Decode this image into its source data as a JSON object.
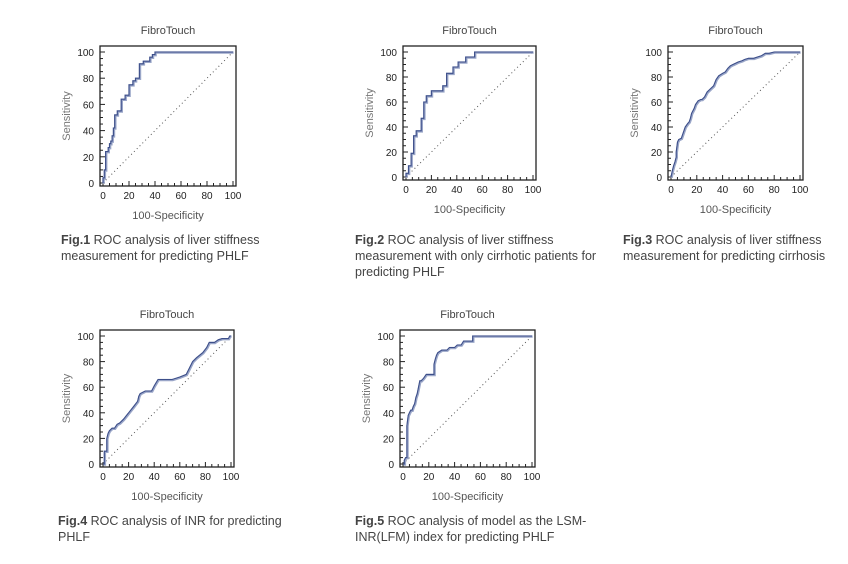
{
  "colors": {
    "curve": "#3d4f8a",
    "curve_shadow": "#9aa6c8",
    "axis": "#222222",
    "diagonal": "#555555",
    "tick_label": "#222222",
    "axis_title": "#777777"
  },
  "chart_data": [
    {
      "id": "fig1",
      "type": "line",
      "title": "FibroTouch",
      "xlabel": "100-Specificity",
      "ylabel": "Sensitivity",
      "xlim": [
        0,
        100
      ],
      "ylim": [
        0,
        100
      ],
      "xticks": [
        "0",
        "20",
        "40",
        "60",
        "80",
        "100"
      ],
      "yticks": [
        "0",
        "20",
        "40",
        "60",
        "80",
        "100"
      ],
      "grid": false,
      "reference_line": "diagonal",
      "caption_label": "Fig.1",
      "caption_text": " ROC analysis of liver stiffness measurement for predicting PHLF",
      "series": [
        {
          "name": "ROC",
          "x": [
            0,
            0,
            1,
            1,
            2,
            2,
            4,
            4,
            5,
            5,
            6,
            6,
            7,
            7,
            8,
            8,
            9,
            9,
            11,
            11,
            14,
            14,
            17,
            17,
            20,
            20,
            23,
            23,
            25,
            25,
            28,
            28,
            31,
            31,
            36,
            36,
            38,
            38,
            40,
            40,
            100
          ],
          "y": [
            0,
            4,
            4,
            10,
            10,
            24,
            24,
            27,
            27,
            30,
            30,
            32,
            32,
            36,
            36,
            42,
            42,
            52,
            52,
            55,
            55,
            64,
            64,
            67,
            67,
            75,
            75,
            78,
            78,
            80,
            80,
            91,
            91,
            93,
            93,
            96,
            96,
            98,
            98,
            100,
            100
          ]
        }
      ]
    },
    {
      "id": "fig2",
      "type": "line",
      "title": "FibroTouch",
      "xlabel": "100-Specificity",
      "ylabel": "Sensitivity",
      "xlim": [
        0,
        100
      ],
      "ylim": [
        0,
        100
      ],
      "xticks": [
        "0",
        "20",
        "40",
        "60",
        "80",
        "100"
      ],
      "yticks": [
        "0",
        "20",
        "40",
        "60",
        "80",
        "100"
      ],
      "grid": false,
      "reference_line": "diagonal",
      "caption_label": "Fig.2",
      "caption_text": " ROC analysis of liver stiffness measurement with only cirrhotic patients for predicting PHLF",
      "series": [
        {
          "name": "ROC",
          "x": [
            0,
            0,
            2,
            2,
            4,
            4,
            6,
            6,
            8,
            8,
            12,
            12,
            14,
            14,
            16,
            16,
            20,
            20,
            29,
            29,
            32,
            32,
            37,
            37,
            41,
            41,
            47,
            47,
            54,
            54,
            100
          ],
          "y": [
            0,
            3,
            3,
            9,
            9,
            19,
            19,
            33,
            33,
            37,
            37,
            47,
            47,
            60,
            60,
            65,
            65,
            69,
            69,
            73,
            73,
            83,
            83,
            88,
            88,
            92,
            92,
            96,
            96,
            100,
            100
          ]
        }
      ]
    },
    {
      "id": "fig3",
      "type": "line",
      "title": "FibroTouch",
      "xlabel": "100-Specificity",
      "ylabel": "Sensitivity",
      "xlim": [
        0,
        100
      ],
      "ylim": [
        0,
        100
      ],
      "xticks": [
        "0",
        "20",
        "40",
        "60",
        "80",
        "100"
      ],
      "yticks": [
        "0",
        "20",
        "40",
        "60",
        "80",
        "100"
      ],
      "grid": false,
      "reference_line": "diagonal",
      "caption_label": "Fig.3",
      "caption_text": " ROC analysis of liver stiffness measurement for predicting cirrhosis",
      "series": [
        {
          "name": "ROC",
          "x": [
            0,
            1,
            2,
            3,
            4,
            4,
            5,
            6,
            8,
            9,
            10,
            11,
            13,
            14,
            15,
            16,
            18,
            19,
            21,
            23,
            24,
            26,
            28,
            30,
            32,
            33,
            35,
            37,
            40,
            42,
            44,
            46,
            48,
            50,
            52,
            55,
            57,
            60,
            64,
            67,
            70,
            73,
            76,
            80,
            82,
            84,
            100
          ],
          "y": [
            0,
            5,
            9,
            12,
            16,
            20,
            28,
            30,
            31,
            34,
            37,
            40,
            43,
            44,
            47,
            51,
            55,
            58,
            61,
            62,
            62,
            64,
            68,
            70,
            72,
            73,
            78,
            81,
            83,
            84,
            87,
            89,
            90,
            91,
            92,
            93,
            94,
            95,
            95,
            96,
            97,
            99,
            99,
            100,
            100,
            100,
            100
          ]
        }
      ]
    },
    {
      "id": "fig4",
      "type": "line",
      "title": "FibroTouch",
      "xlabel": "100-Specificity",
      "ylabel": "Sensitivity",
      "xlim": [
        0,
        100
      ],
      "ylim": [
        0,
        100
      ],
      "xticks": [
        "0",
        "20",
        "40",
        "60",
        "80",
        "100"
      ],
      "yticks": [
        "0",
        "20",
        "40",
        "60",
        "80",
        "100"
      ],
      "grid": false,
      "reference_line": "diagonal",
      "caption_label": "Fig.4",
      "caption_text": " ROC analysis of INR for predicting PHLF",
      "series": [
        {
          "name": "ROC",
          "x": [
            0,
            1,
            1,
            3,
            3,
            4,
            5,
            7,
            9,
            11,
            13,
            16,
            20,
            24,
            27,
            28,
            29,
            33,
            38,
            40,
            43,
            48,
            54,
            60,
            65,
            67,
            70,
            73,
            78,
            81,
            83,
            87,
            90,
            93,
            97,
            98,
            99,
            100
          ],
          "y": [
            0,
            0,
            10,
            10,
            20,
            24,
            26,
            28,
            28,
            31,
            32,
            35,
            40,
            45,
            49,
            53,
            55,
            57,
            57,
            61,
            66,
            66,
            66,
            68,
            70,
            74,
            80,
            83,
            87,
            91,
            95,
            95,
            97,
            98,
            98,
            98,
            100,
            100
          ]
        }
      ]
    },
    {
      "id": "fig5",
      "type": "line",
      "title": "FibroTouch",
      "xlabel": "100-Specificity",
      "ylabel": "Sensitivity",
      "xlim": [
        0,
        100
      ],
      "ylim": [
        0,
        100
      ],
      "xticks": [
        "0",
        "20",
        "40",
        "60",
        "80",
        "100"
      ],
      "yticks": [
        "0",
        "20",
        "40",
        "60",
        "80",
        "100"
      ],
      "grid": false,
      "reference_line": "diagonal",
      "caption_label": "Fig.5",
      "caption_text": " ROC analysis of model as the LSM-INR(LFM) index for predicting PHLF",
      "series": [
        {
          "name": "ROC",
          "x": [
            0,
            1,
            1,
            2,
            3,
            3,
            4,
            5,
            6,
            7,
            8,
            9,
            10,
            11,
            12,
            13,
            14,
            16,
            18,
            20,
            24,
            24,
            25,
            26,
            27,
            30,
            34,
            36,
            40,
            42,
            45,
            47,
            54,
            54,
            100
          ],
          "y": [
            0,
            0,
            3,
            5,
            5,
            30,
            38,
            40,
            42,
            42,
            45,
            47,
            52,
            55,
            60,
            65,
            65,
            67,
            70,
            70,
            70,
            78,
            82,
            85,
            87,
            89,
            89,
            91,
            91,
            93,
            93,
            96,
            96,
            100,
            100
          ]
        }
      ]
    }
  ]
}
